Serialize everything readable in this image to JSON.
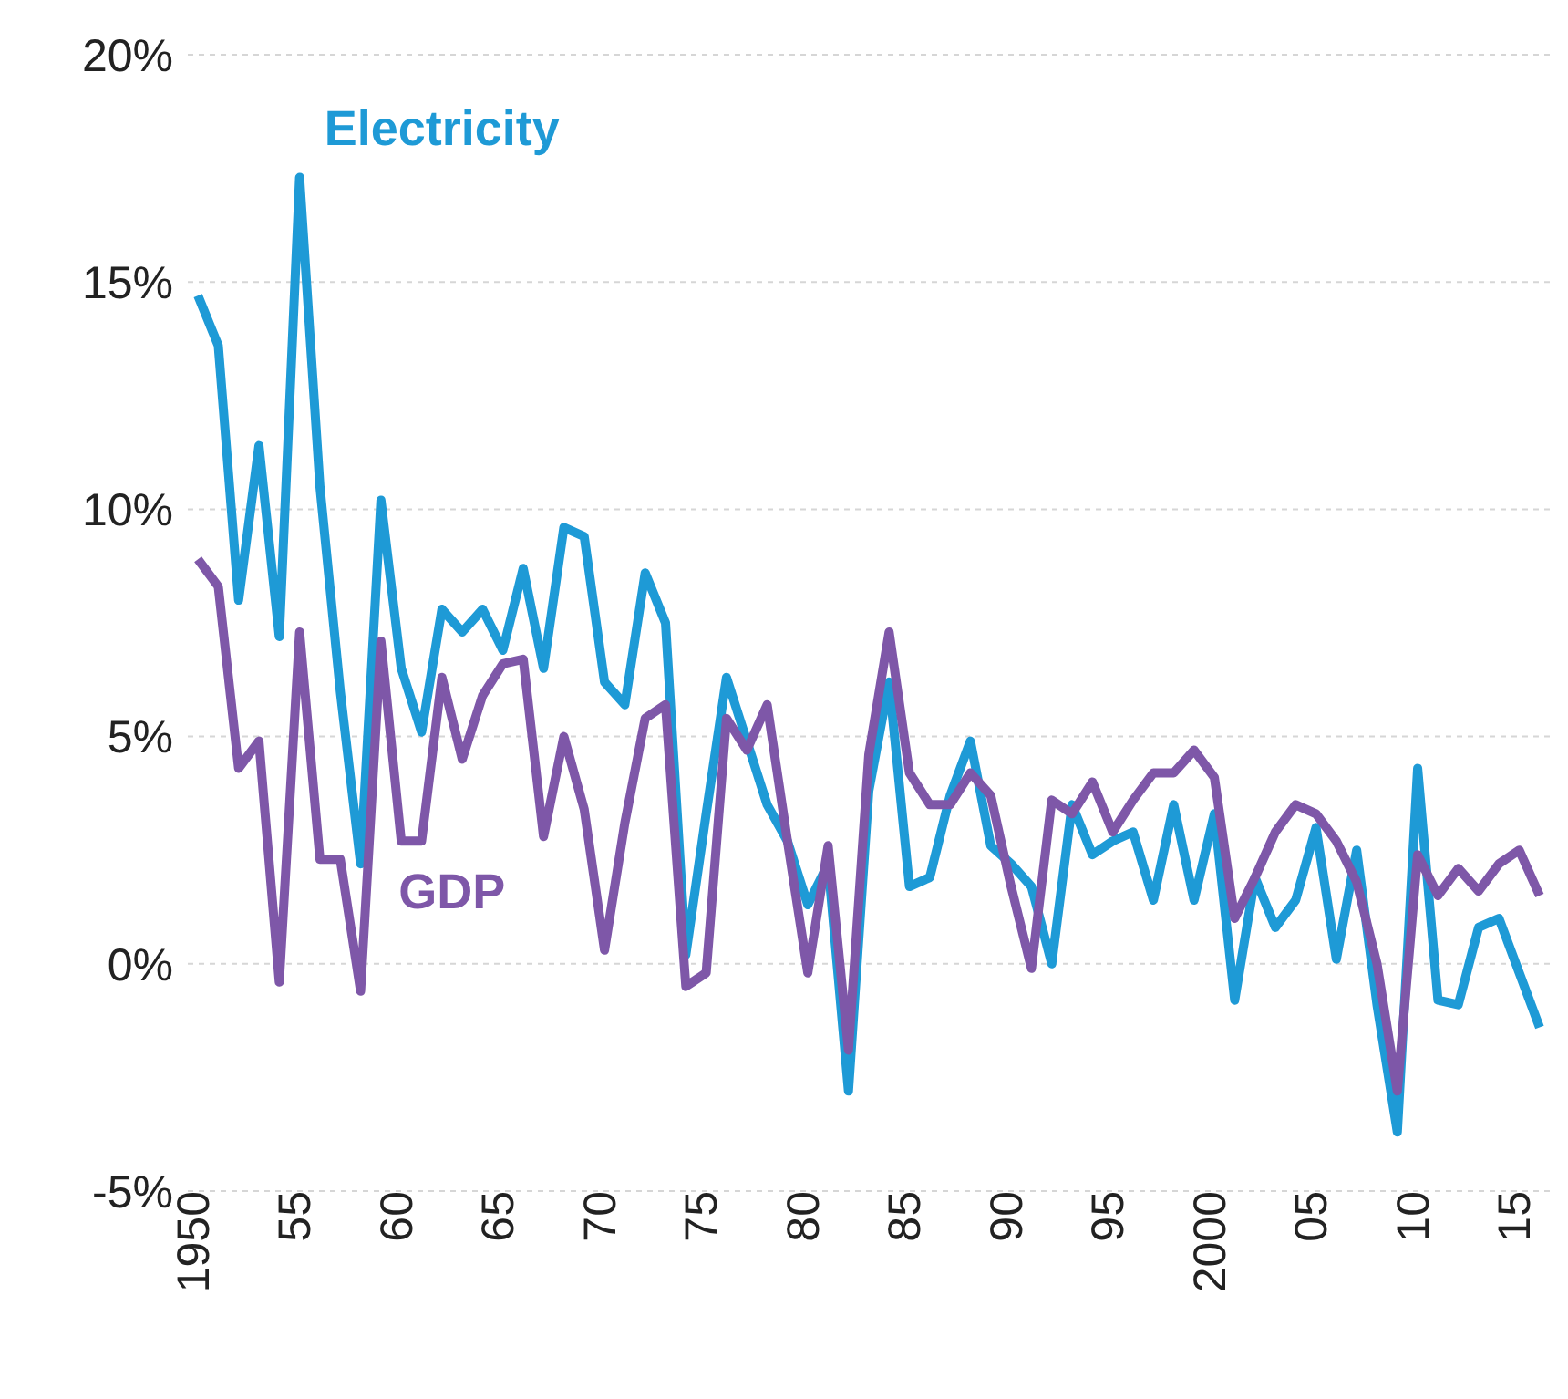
{
  "chart_data": {
    "type": "line",
    "x": [
      1950,
      1951,
      1952,
      1953,
      1954,
      1955,
      1956,
      1957,
      1958,
      1959,
      1960,
      1961,
      1962,
      1963,
      1964,
      1965,
      1966,
      1967,
      1968,
      1969,
      1970,
      1971,
      1972,
      1973,
      1974,
      1975,
      1976,
      1977,
      1978,
      1979,
      1980,
      1981,
      1982,
      1983,
      1984,
      1985,
      1986,
      1987,
      1988,
      1989,
      1990,
      1991,
      1992,
      1993,
      1994,
      1995,
      1996,
      1997,
      1998,
      1999,
      2000,
      2001,
      2002,
      2003,
      2004,
      2005,
      2006,
      2007,
      2008,
      2009,
      2010,
      2011,
      2012,
      2013,
      2014,
      2015,
      2016
    ],
    "series": [
      {
        "name": "Electricity",
        "color": "#1e9ad6",
        "values": [
          14.7,
          13.6,
          8.0,
          11.4,
          7.2,
          17.3,
          10.5,
          6.0,
          2.2,
          10.2,
          6.5,
          5.1,
          7.8,
          7.3,
          7.8,
          6.9,
          8.7,
          6.5,
          9.6,
          9.4,
          6.2,
          5.7,
          8.6,
          7.5,
          0.2,
          3.3,
          6.3,
          4.9,
          3.5,
          2.7,
          1.3,
          2.2,
          -2.8,
          3.8,
          6.2,
          1.7,
          1.9,
          3.7,
          4.9,
          2.6,
          2.2,
          1.7,
          0.0,
          3.5,
          2.4,
          2.7,
          2.9,
          1.4,
          3.5,
          1.4,
          3.3,
          -0.8,
          1.9,
          0.8,
          1.4,
          3.0,
          0.1,
          2.5,
          -0.9,
          -3.7,
          4.3,
          -0.8,
          -0.9,
          0.8,
          1.0,
          -0.2,
          -1.4
        ]
      },
      {
        "name": "GDP",
        "color": "#7e57a8",
        "values": [
          8.9,
          8.3,
          4.3,
          4.9,
          -0.4,
          7.3,
          2.3,
          2.3,
          -0.6,
          7.1,
          2.7,
          2.7,
          6.3,
          4.5,
          5.9,
          6.6,
          6.7,
          2.8,
          5.0,
          3.4,
          0.3,
          3.1,
          5.4,
          5.7,
          -0.5,
          -0.2,
          5.4,
          4.7,
          5.7,
          2.7,
          -0.2,
          2.6,
          -1.9,
          4.6,
          7.3,
          4.2,
          3.5,
          3.5,
          4.2,
          3.7,
          1.7,
          -0.1,
          3.6,
          3.3,
          4.0,
          2.9,
          3.6,
          4.2,
          4.2,
          4.7,
          4.1,
          1.0,
          1.9,
          2.9,
          3.5,
          3.3,
          2.7,
          1.8,
          0.0,
          -2.8,
          2.4,
          1.5,
          2.1,
          1.6,
          2.2,
          2.5,
          1.5
        ]
      }
    ],
    "xlim": [
      1949.5,
      2016.5
    ],
    "xticks": [
      1950,
      {
        "value": 1955,
        "label": "55"
      },
      {
        "value": 1960,
        "label": "60"
      },
      {
        "value": 1965,
        "label": "65"
      },
      {
        "value": 1970,
        "label": "70"
      },
      {
        "value": 1975,
        "label": "75"
      },
      {
        "value": 1980,
        "label": "80"
      },
      {
        "value": 1985,
        "label": "85"
      },
      {
        "value": 1990,
        "label": "90"
      },
      {
        "value": 1995,
        "label": "95"
      },
      2000,
      {
        "value": 2005,
        "label": "05"
      },
      {
        "value": 2010,
        "label": "10"
      },
      {
        "value": 2015,
        "label": "15"
      }
    ],
    "ylim": [
      -5,
      20
    ],
    "yticks": [
      {
        "value": -5,
        "label": "-5%"
      },
      {
        "value": 0,
        "label": "0%"
      },
      {
        "value": 5,
        "label": "5%"
      },
      {
        "value": 10,
        "label": "10%"
      },
      {
        "value": 15,
        "label": "15%"
      },
      {
        "value": 20,
        "label": "20%"
      }
    ],
    "grid": "y",
    "marker": "none",
    "line_style": "solid"
  }
}
